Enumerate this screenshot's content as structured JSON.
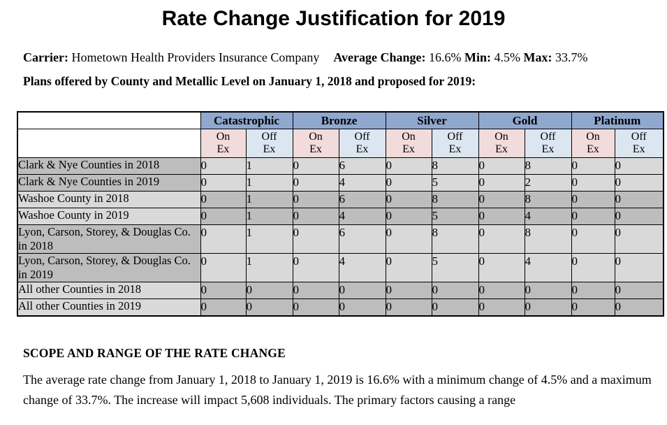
{
  "title": "Rate Change Justification for 2019",
  "meta": {
    "carrier_label": "Carrier:",
    "carrier_value": "Hometown Health Providers Insurance Company",
    "avg_label": "Average Change:",
    "avg_value": "16.6%",
    "min_label": "Min:",
    "min_value": "4.5%",
    "max_label": "Max:",
    "max_value": "33.7%"
  },
  "table_intro": "Plans offered by County and Metallic Level on January 1, 2018 and proposed for 2019:",
  "plans_table": {
    "metal_levels": [
      "Catastrophic",
      "Bronze",
      "Silver",
      "Gold",
      "Platinum"
    ],
    "sub_headers": [
      "On\nEx",
      "Off\nEx"
    ],
    "rows": [
      {
        "label": "Clark & Nye Counties in 2018",
        "values": [
          "0",
          "1",
          "0",
          "6",
          "0",
          "8",
          "0",
          "8",
          "0",
          "0"
        ]
      },
      {
        "label": "Clark & Nye Counties in 2019",
        "values": [
          "0",
          "1",
          "0",
          "4",
          "0",
          "5",
          "0",
          "2",
          "0",
          "0"
        ]
      },
      {
        "label": "Washoe County in 2018",
        "values": [
          "0",
          "1",
          "0",
          "6",
          "0",
          "8",
          "0",
          "8",
          "0",
          "0"
        ]
      },
      {
        "label": "Washoe County in 2019",
        "values": [
          "0",
          "1",
          "0",
          "4",
          "0",
          "5",
          "0",
          "4",
          "0",
          "0"
        ]
      },
      {
        "label": "Lyon, Carson, Storey, & Douglas Co. in 2018",
        "values": [
          "0",
          "1",
          "0",
          "6",
          "0",
          "8",
          "0",
          "8",
          "0",
          "0"
        ]
      },
      {
        "label": "Lyon, Carson, Storey, & Douglas Co. in 2019",
        "values": [
          "0",
          "1",
          "0",
          "4",
          "0",
          "5",
          "0",
          "4",
          "0",
          "0"
        ]
      },
      {
        "label": "All other Counties in 2018",
        "values": [
          "0",
          "0",
          "0",
          "0",
          "0",
          "0",
          "0",
          "0",
          "0",
          "0"
        ]
      },
      {
        "label": "All other Counties in 2019",
        "values": [
          "0",
          "0",
          "0",
          "0",
          "0",
          "0",
          "0",
          "0",
          "0",
          "0"
        ]
      }
    ]
  },
  "scope_heading": "SCOPE AND RANGE OF THE RATE CHANGE",
  "scope_paragraph": "The average rate change from January 1, 2018 to January 1, 2019 is 16.6% with a minimum change of 4.5% and a maximum change of 33.7%. The increase will impact 5,608 individuals.  The primary factors causing a range",
  "colors": {
    "header_blue": "#90A8CE",
    "on_ex_pink": "#F2DCDB",
    "off_ex_blue": "#DCE6F1",
    "gray_dark": "#BDBDBD",
    "gray_light": "#D9D9D9"
  }
}
